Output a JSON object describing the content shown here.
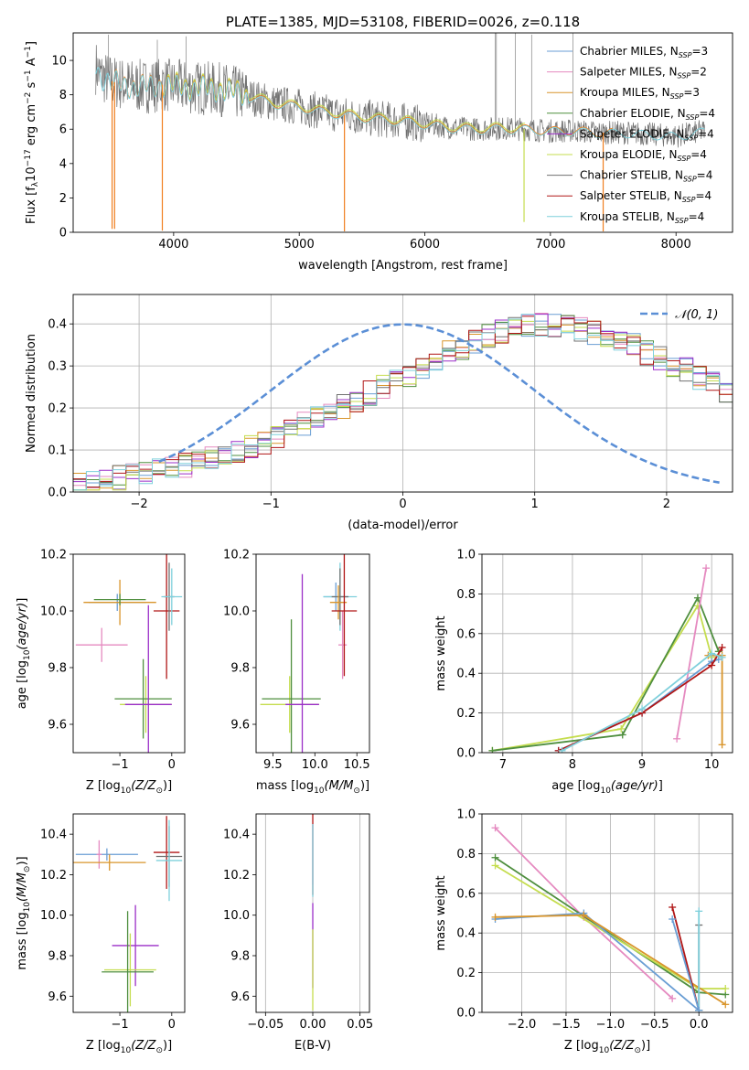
{
  "colors": {
    "Chabrier MILES": "#6a9ed4",
    "Salpeter MILES": "#e58ac0",
    "Kroupa MILES": "#d9952b",
    "Chabrier ELODIE": "#4f8f3f",
    "Salpeter ELODIE": "#9b2fc8",
    "Kroupa ELODIE": "#c5dd4f",
    "Chabrier STELIB": "#707070",
    "Salpeter STELIB": "#b01616",
    "Kroupa STELIB": "#7fd0dc",
    "model_line": "#f07f1f",
    "gauss": "#5b8fd6",
    "grid": "#b0b0b0"
  },
  "chart_data": [
    {
      "id": "spectrum",
      "type": "line",
      "title": "PLATE=1385, MJD=53108, FIBERID=0026, z=0.118",
      "xlabel": "wavelength [Angstrom, rest frame]",
      "ylabel_parts": [
        "Flux [f",
        "λ",
        "10",
        "−17",
        " erg cm",
        "−2",
        " s",
        "−1",
        " A",
        "−1",
        "]"
      ],
      "xlim": [
        3200,
        8450
      ],
      "ylim": [
        0,
        11.6
      ],
      "xticks": [
        4000,
        5000,
        6000,
        7000,
        8000
      ],
      "yticks": [
        0,
        2,
        4,
        6,
        8,
        10
      ],
      "legend_position": "upper-right",
      "legend": [
        {
          "model": "Chabrier MILES",
          "label": "Chabrier MILES, N",
          "sub": "SSP",
          "value": "=3"
        },
        {
          "model": "Salpeter MILES",
          "label": "Salpeter MILES, N",
          "sub": "SSP",
          "value": "=2"
        },
        {
          "model": "Kroupa MILES",
          "label": "Kroupa MILES, N",
          "sub": "SSP",
          "value": "=3"
        },
        {
          "model": "Chabrier ELODIE",
          "label": "Chabrier ELODIE, N",
          "sub": "SSP",
          "value": "=4"
        },
        {
          "model": "Salpeter ELODIE",
          "label": "Salpeter ELODIE, N",
          "sub": "SSP",
          "value": "=4"
        },
        {
          "model": "Kroupa ELODIE",
          "label": "Kroupa ELODIE, N",
          "sub": "SSP",
          "value": "=4"
        },
        {
          "model": "Chabrier STELIB",
          "label": "Chabrier STELIB, N",
          "sub": "SSP",
          "value": "=4"
        },
        {
          "model": "Salpeter STELIB",
          "label": "Salpeter STELIB, N",
          "sub": "SSP",
          "value": "=4"
        },
        {
          "model": "Kroupa STELIB",
          "label": "Kroupa STELIB, N",
          "sub": "SSP",
          "value": "=4"
        }
      ],
      "continuum": [
        [
          3380,
          9.6
        ],
        [
          3420,
          9.1
        ],
        [
          3500,
          8.8
        ],
        [
          3600,
          8.6
        ],
        [
          3700,
          8.5
        ],
        [
          3800,
          8.5
        ],
        [
          3900,
          8.6
        ],
        [
          4000,
          8.5
        ],
        [
          4200,
          8.4
        ],
        [
          4400,
          8.3
        ],
        [
          4600,
          7.9
        ],
        [
          4800,
          7.5
        ],
        [
          5000,
          7.3
        ],
        [
          5200,
          7.0
        ],
        [
          5400,
          6.8
        ],
        [
          5600,
          6.6
        ],
        [
          5800,
          6.5
        ],
        [
          6000,
          6.3
        ],
        [
          6200,
          6.1
        ],
        [
          6400,
          6.0
        ],
        [
          6600,
          6.05
        ],
        [
          6800,
          6.0
        ],
        [
          7000,
          5.9
        ],
        [
          7200,
          5.9
        ],
        [
          7400,
          5.8
        ],
        [
          7600,
          5.8
        ],
        [
          7800,
          5.7
        ],
        [
          8000,
          5.6
        ],
        [
          8230,
          5.9
        ]
      ],
      "dips": [
        [
          3510,
          0.2
        ],
        [
          3530,
          0.2
        ],
        [
          3910,
          0.1
        ],
        [
          5360,
          0.05
        ],
        [
          7420,
          0.05
        ],
        [
          6790,
          0.6
        ]
      ]
    },
    {
      "id": "residuals",
      "type": "histogram",
      "xlabel": "(data-model)/error",
      "ylabel": "Normed distribution",
      "xlim": [
        -2.5,
        2.5
      ],
      "ylim": [
        0,
        0.47
      ],
      "xticks": [
        -2,
        -1,
        0,
        1,
        2
      ],
      "yticks": [
        0.0,
        0.1,
        0.2,
        0.3,
        0.4
      ],
      "legend": "𝒩(0, 1)",
      "legend_position": "upper-right",
      "bin_width": 0.1,
      "bin_start": -2.5,
      "mean_heights": [
        0.02,
        0.025,
        0.03,
        0.035,
        0.04,
        0.045,
        0.05,
        0.06,
        0.065,
        0.075,
        0.08,
        0.09,
        0.1,
        0.11,
        0.12,
        0.13,
        0.145,
        0.16,
        0.175,
        0.19,
        0.205,
        0.22,
        0.235,
        0.25,
        0.265,
        0.28,
        0.3,
        0.31,
        0.33,
        0.345,
        0.36,
        0.37,
        0.38,
        0.39,
        0.395,
        0.4,
        0.395,
        0.39,
        0.385,
        0.38,
        0.37,
        0.36,
        0.35,
        0.33,
        0.32,
        0.3,
        0.29,
        0.27,
        0.255,
        0.24
      ]
    },
    {
      "id": "age-vs-Z",
      "type": "errorbar",
      "xlabel": "Z [log",
      "xlabel_sub": "10",
      "xlabel_tail": "(Z/Z",
      "xlabel_end": ")]",
      "ylabel": "age  [log10(age/yr)]",
      "xlim": [
        -1.9,
        0.25
      ],
      "ylim": [
        9.5,
        10.2
      ],
      "xticks": [
        -1,
        0
      ],
      "yticks": [
        9.6,
        9.8,
        10.0,
        10.2
      ],
      "points": [
        {
          "model": "Chabrier MILES",
          "x": -1.05,
          "xerr": 0.55,
          "y": 10.03,
          "yerr": 0.03
        },
        {
          "model": "Salpeter MILES",
          "x": -1.35,
          "xerr": 0.5,
          "y": 9.88,
          "yerr": 0.06
        },
        {
          "model": "Kroupa MILES",
          "x": -1.0,
          "xerr": 0.7,
          "y": 10.03,
          "yerr": 0.08
        },
        {
          "model": "Chabrier ELODIE",
          "x": -1.0,
          "xerr": 0.5,
          "y": 10.04,
          "yerr": 0.02
        },
        {
          "model": "Kroupa ELODIE",
          "x": -0.5,
          "xerr": 0.5,
          "y": 9.67,
          "yerr": 0.1
        },
        {
          "model": "Chabrier ELODIE",
          "x": -0.55,
          "xerr": 0.55,
          "y": 9.69,
          "yerr": 0.14
        },
        {
          "model": "Salpeter ELODIE",
          "x": -0.45,
          "xerr": 0.45,
          "y": 9.67,
          "yerr": 0.35
        },
        {
          "model": "Salpeter STELIB",
          "x": -0.1,
          "xerr": 0.25,
          "y": 10.0,
          "yerr": 0.24
        },
        {
          "model": "Chabrier STELIB",
          "x": -0.05,
          "xerr": 0.1,
          "y": 10.05,
          "yerr": 0.12
        },
        {
          "model": "Kroupa STELIB",
          "x": 0.0,
          "xerr": 0.2,
          "y": 10.05,
          "yerr": 0.1
        }
      ]
    },
    {
      "id": "age-vs-mass",
      "type": "errorbar",
      "xlabel": "mass [log",
      "xlabel_sub": "10",
      "xlabel_tail": "(M/M",
      "xlabel_end": ")]",
      "xlim": [
        9.3,
        10.65
      ],
      "ylim": [
        9.5,
        10.2
      ],
      "xticks": [
        9.5,
        10.0,
        10.5
      ],
      "yticks": [
        9.6,
        9.8,
        10.0,
        10.2
      ],
      "points": [
        {
          "model": "Kroupa ELODIE",
          "x": 9.7,
          "xerr": 0.35,
          "y": 9.67,
          "yerr": 0.1
        },
        {
          "model": "Chabrier ELODIE",
          "x": 9.72,
          "xerr": 0.35,
          "y": 9.69,
          "yerr": 0.28
        },
        {
          "model": "Salpeter ELODIE",
          "x": 9.85,
          "xerr": 0.2,
          "y": 9.67,
          "yerr": 0.46
        },
        {
          "model": "Chabrier MILES",
          "x": 10.25,
          "xerr": 0.15,
          "y": 10.05,
          "yerr": 0.05
        },
        {
          "model": "Kroupa STELIB",
          "x": 10.3,
          "xerr": 0.2,
          "y": 10.05,
          "yerr": 0.12
        },
        {
          "model": "Chabrier STELIB",
          "x": 10.3,
          "xerr": 0.1,
          "y": 10.05,
          "yerr": 0.1
        },
        {
          "model": "Salpeter MILES",
          "x": 10.33,
          "xerr": 0.05,
          "y": 9.88,
          "yerr": 0.12
        },
        {
          "model": "Kroupa MILES",
          "x": 10.28,
          "xerr": 0.1,
          "y": 10.03,
          "yerr": 0.06
        },
        {
          "model": "Salpeter STELIB",
          "x": 10.35,
          "xerr": 0.15,
          "y": 10.0,
          "yerr": 0.23
        }
      ]
    },
    {
      "id": "weight-vs-age",
      "type": "line",
      "xlabel": "age  [log10(age/yr)]",
      "ylabel": "mass weight",
      "xlim": [
        6.7,
        10.3
      ],
      "ylim": [
        0,
        1.0
      ],
      "xticks": [
        7,
        8,
        9,
        10
      ],
      "yticks": [
        0.0,
        0.2,
        0.4,
        0.6,
        0.8,
        1.0
      ],
      "series": [
        {
          "model": "Kroupa ELODIE",
          "x": [
            6.85,
            8.7,
            9.8,
            10.0
          ],
          "y": [
            0.01,
            0.12,
            0.74,
            0.48
          ]
        },
        {
          "model": "Chabrier ELODIE",
          "x": [
            6.85,
            8.72,
            9.8,
            10.1
          ],
          "y": [
            0.01,
            0.09,
            0.78,
            0.51
          ]
        },
        {
          "model": "Salpeter MILES",
          "x": [
            9.5,
            9.92
          ],
          "y": [
            0.07,
            0.93
          ]
        },
        {
          "model": "Chabrier MILES",
          "x": [
            7.8,
            9.0,
            10.0,
            10.1
          ],
          "y": [
            0.01,
            0.2,
            0.46,
            0.47
          ]
        },
        {
          "model": "Salpeter STELIB",
          "x": [
            7.8,
            9.0,
            10.0,
            10.15
          ],
          "y": [
            0.01,
            0.2,
            0.44,
            0.53
          ]
        },
        {
          "model": "Kroupa MILES",
          "x": [
            9.95,
            10.15,
            10.15
          ],
          "y": [
            0.49,
            0.49,
            0.04
          ]
        },
        {
          "model": "Kroupa STELIB",
          "x": [
            7.85,
            9.0,
            10.0,
            10.15
          ],
          "y": [
            0.01,
            0.22,
            0.5,
            0.48
          ]
        }
      ]
    },
    {
      "id": "mass-vs-Z",
      "type": "errorbar",
      "xlabel": "Z [log",
      "xlabel_sub": "10",
      "xlabel_tail": "(Z/Z",
      "xlabel_end": ")]",
      "ylabel": "mass [log10(M/M⊙)]",
      "xlim": [
        -1.9,
        0.25
      ],
      "ylim": [
        9.52,
        10.5
      ],
      "xticks": [
        -1,
        0
      ],
      "yticks": [
        9.6,
        9.8,
        10.0,
        10.2,
        10.4
      ],
      "points": [
        {
          "model": "Chabrier MILES",
          "x": -1.25,
          "xerr": 0.6,
          "y": 10.3,
          "yerr": 0.03
        },
        {
          "model": "Salpeter MILES",
          "x": -1.4,
          "xerr": 0.05,
          "y": 10.3,
          "yerr": 0.07
        },
        {
          "model": "Kroupa MILES",
          "x": -1.2,
          "xerr": 0.7,
          "y": 10.26,
          "yerr": 0.04
        },
        {
          "model": "Salpeter ELODIE",
          "x": -0.7,
          "xerr": 0.45,
          "y": 9.85,
          "yerr": 0.2
        },
        {
          "model": "Kroupa ELODIE",
          "x": -0.8,
          "xerr": 0.5,
          "y": 9.73,
          "yerr": 0.18
        },
        {
          "model": "Chabrier ELODIE",
          "x": -0.85,
          "xerr": 0.5,
          "y": 9.72,
          "yerr": 0.3
        },
        {
          "model": "Salpeter STELIB",
          "x": -0.1,
          "xerr": 0.25,
          "y": 10.31,
          "yerr": 0.18
        },
        {
          "model": "Chabrier STELIB",
          "x": -0.05,
          "xerr": 0.25,
          "y": 10.29,
          "yerr": 0.15
        },
        {
          "model": "Kroupa STELIB",
          "x": -0.05,
          "xerr": 0.25,
          "y": 10.27,
          "yerr": 0.2
        }
      ]
    },
    {
      "id": "mass-vs-ebv",
      "type": "errorbar",
      "xlabel": "E(B-V)",
      "xlim": [
        -0.06,
        0.06
      ],
      "ylim": [
        9.52,
        10.5
      ],
      "xticks": [
        -0.05,
        0.0,
        0.05
      ],
      "yticks": [
        9.6,
        9.8,
        10.0,
        10.2,
        10.4
      ],
      "points": [
        {
          "model": "Salpeter STELIB",
          "x": 0.0,
          "xerr": 0.0,
          "y": 10.3,
          "yerr": 0.2
        },
        {
          "model": "Salpeter ELODIE",
          "x": 0.0,
          "xerr": 0.0,
          "y": 9.85,
          "yerr": 0.21
        },
        {
          "model": "Kroupa ELODIE",
          "x": 0.0,
          "xerr": 0.0,
          "y": 9.73,
          "yerr": 0.2
        },
        {
          "model": "Salpeter MILES",
          "x": 0.0,
          "xerr": 0.0,
          "y": 10.3,
          "yerr": 0.15
        },
        {
          "model": "Kroupa STELIB",
          "x": 0.0,
          "xerr": 0.0,
          "y": 10.27,
          "yerr": 0.18
        }
      ]
    },
    {
      "id": "weight-vs-Z",
      "type": "line",
      "xlabel": "Z [log",
      "xlabel_sub": "10",
      "xlabel_tail": "(Z/Z",
      "xlabel_end": ")]",
      "ylabel": "mass weight",
      "xlim": [
        -2.45,
        0.38
      ],
      "ylim": [
        0,
        1.0
      ],
      "xticks": [
        -2.0,
        -1.5,
        -1.0,
        -0.5,
        0.0
      ],
      "yticks": [
        0.0,
        0.2,
        0.4,
        0.6,
        0.8,
        1.0
      ],
      "series": [
        {
          "model": "Salpeter MILES",
          "x": [
            -2.3,
            -1.3,
            -0.3
          ],
          "y": [
            0.93,
            0.48,
            0.07
          ]
        },
        {
          "model": "Chabrier ELODIE",
          "x": [
            -2.3,
            0.0,
            0.3
          ],
          "y": [
            0.78,
            0.1,
            0.09
          ]
        },
        {
          "model": "Kroupa ELODIE",
          "x": [
            -2.3,
            0.0,
            0.3
          ],
          "y": [
            0.74,
            0.12,
            0.12
          ]
        },
        {
          "model": "Chabrier MILES",
          "x": [
            -2.3,
            -1.3,
            0.0
          ],
          "y": [
            0.47,
            0.5,
            0.01
          ]
        },
        {
          "model": "Kroupa MILES",
          "x": [
            -2.3,
            -1.3,
            0.3
          ],
          "y": [
            0.48,
            0.49,
            0.04
          ]
        },
        {
          "model": "Salpeter STELIB",
          "x": [
            -0.3,
            0.0
          ],
          "y": [
            0.53,
            0.01
          ]
        },
        {
          "model": "Chabrier STELIB",
          "x": [
            0.0,
            0.0
          ],
          "y": [
            0.44,
            0.01
          ]
        },
        {
          "model": "Kroupa STELIB",
          "x": [
            0.0,
            0.0
          ],
          "y": [
            0.51,
            0.01
          ]
        },
        {
          "model": "Chabrier MILES",
          "x": [
            -0.3,
            0.0
          ],
          "y": [
            0.47,
            0.01
          ]
        }
      ]
    }
  ]
}
